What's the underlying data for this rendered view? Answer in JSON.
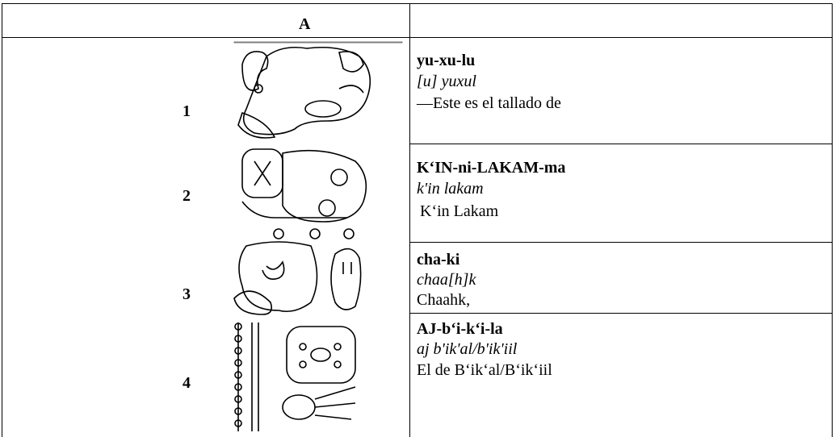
{
  "header": {
    "column_a": "A"
  },
  "rows": [
    {
      "number": "1",
      "transliteration": "yu-xu-lu",
      "transcription": "[u] yuxul",
      "translation": "—Este es el tallado de"
    },
    {
      "number": "2",
      "transliteration": "K‘IN-ni-LAKAM-ma",
      "transcription": "k'in lakam",
      "translation": "K‘in Lakam"
    },
    {
      "number": "3",
      "transliteration": "cha-ki",
      "transcription": "chaa[h]k",
      "translation": "Chaahk,"
    },
    {
      "number": "4",
      "transliteration": "AJ-b‘i-k‘i-la",
      "transcription": "aj b'ik'al/b'ik'iil",
      "translation": "El de B‘ik‘al/B‘ik‘iil"
    }
  ]
}
